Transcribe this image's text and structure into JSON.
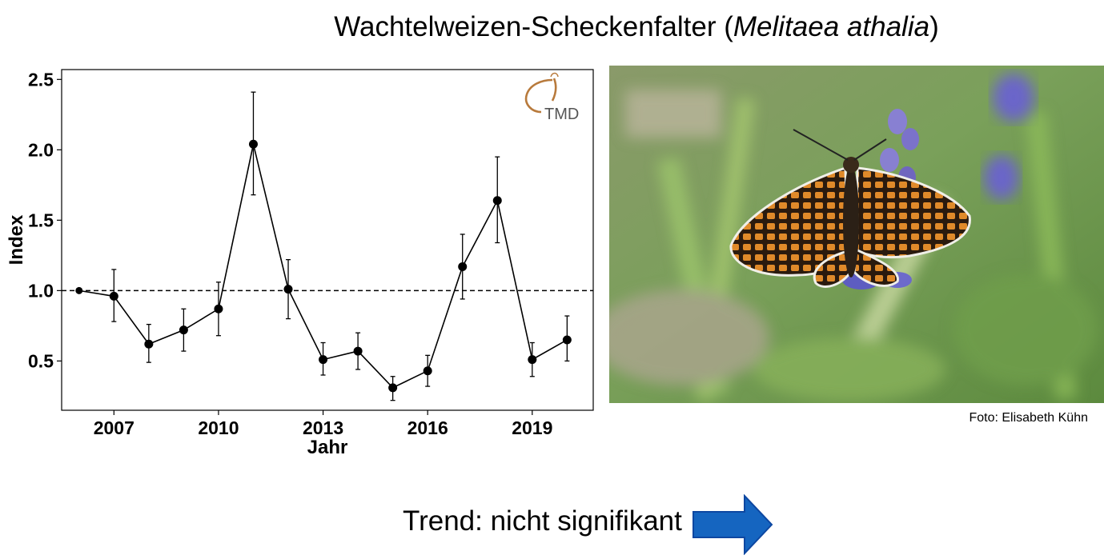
{
  "title": {
    "main": "Wachtelweizen-Scheckenfalter (",
    "species": "Melitaea athalia",
    "close": ")"
  },
  "chart_data": {
    "type": "line",
    "title": "",
    "xlabel": "Jahr",
    "ylabel": "Index",
    "xlim": [
      2005.5,
      2020.75
    ],
    "ylim": [
      0.15,
      2.57
    ],
    "xticks": [
      2007,
      2010,
      2013,
      2016,
      2019
    ],
    "yticks": [
      0.5,
      1.0,
      1.5,
      2.0,
      2.5
    ],
    "ytick_labels": [
      "0.5",
      "1.0",
      "1.5",
      "2.0",
      "2.5"
    ],
    "grid": false,
    "reference_line": 1.0,
    "series": [
      {
        "x": [
          2006,
          2007,
          2008,
          2009,
          2010,
          2011,
          2012,
          2013,
          2014,
          2015,
          2016,
          2017,
          2018,
          2019,
          2020
        ],
        "y": [
          1.0,
          0.96,
          0.62,
          0.72,
          0.87,
          2.04,
          1.01,
          0.51,
          0.57,
          0.31,
          0.43,
          1.17,
          1.64,
          0.51,
          0.65
        ],
        "y_lower": [
          null,
          0.78,
          0.49,
          0.57,
          0.68,
          1.68,
          0.8,
          0.4,
          0.44,
          0.22,
          0.32,
          0.94,
          1.34,
          0.39,
          0.5
        ],
        "y_upper": [
          null,
          1.15,
          0.76,
          0.87,
          1.06,
          2.41,
          1.22,
          0.63,
          0.7,
          0.39,
          0.54,
          1.4,
          1.95,
          0.63,
          0.82
        ]
      }
    ],
    "logo": {
      "text": "TMD",
      "text_color": "#555555",
      "accent": "#b87a3c"
    }
  },
  "photo": {
    "credit": "Foto: Elisabeth Kühn"
  },
  "trend": {
    "label": "Trend: nicht signifikant",
    "arrow_color": "#1565c0",
    "arrow_border": "#0d47a1"
  }
}
